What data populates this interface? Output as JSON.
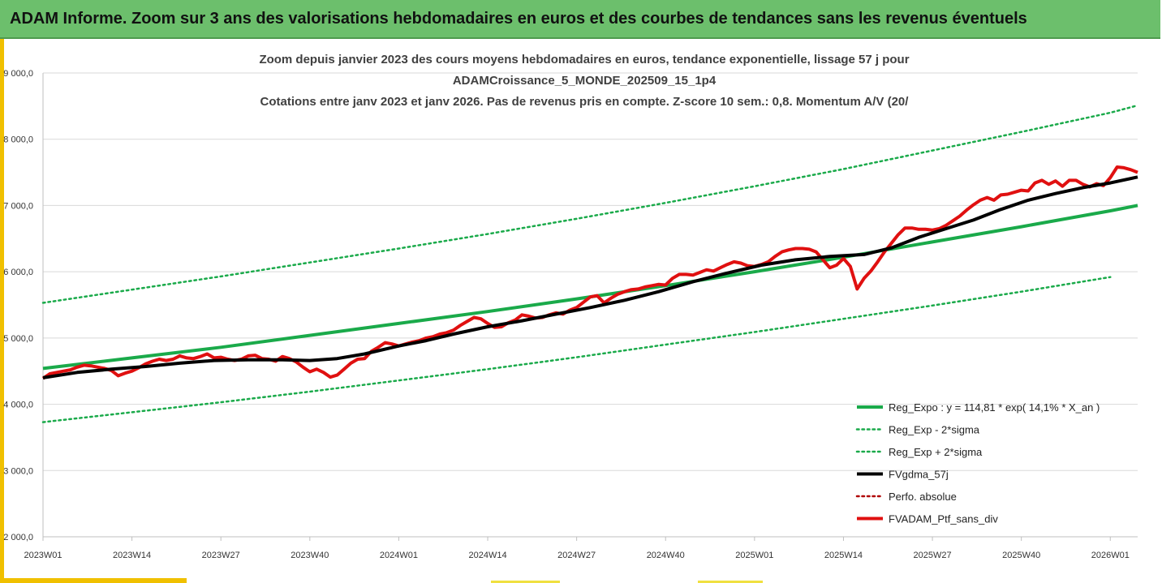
{
  "banner": {
    "title": "ADAM Informe. Zoom sur 3 ans des valorisations hebdomadaires en euros et des courbes de tendances sans les revenus éventuels"
  },
  "colors": {
    "green": "#1aaa4a",
    "black": "#000000",
    "red": "#e01010",
    "darkred": "#b00000",
    "banner": "#6cbf6c"
  },
  "chart_data": {
    "type": "line",
    "title": [
      "Zoom depuis janvier 2023 des cours moyens hebdomadaires  en euros, tendance exponentielle, lissage 57 j pour",
      "ADAMCroissance_5_MONDE_202509_15_1p4",
      "Cotations entre janv 2023 et janv 2026. Pas de revenus pris en compte. Z-score 10 sem.: 0,8. Momentum A/V (20/"
    ],
    "xlabel": "",
    "ylabel": "",
    "ylim": [
      2000,
      9000
    ],
    "y_ticks": [
      {
        "value": 2000,
        "label": "2 000,0"
      },
      {
        "value": 3000,
        "label": "3 000,0"
      },
      {
        "value": 4000,
        "label": "4 000,0"
      },
      {
        "value": 5000,
        "label": "5 000,0"
      },
      {
        "value": 6000,
        "label": "6 000,0"
      },
      {
        "value": 7000,
        "label": "7 000,0"
      },
      {
        "value": 8000,
        "label": "8 000,0"
      },
      {
        "value": 9000,
        "label": "9 000,0"
      }
    ],
    "xlim": [
      0,
      160
    ],
    "x_ticks": [
      {
        "week": 0,
        "label": "2023W01"
      },
      {
        "week": 13,
        "label": "2023W14"
      },
      {
        "week": 26,
        "label": "2023W27"
      },
      {
        "week": 39,
        "label": "2023W40"
      },
      {
        "week": 52,
        "label": "2024W01"
      },
      {
        "week": 65,
        "label": "2024W14"
      },
      {
        "week": 78,
        "label": "2024W27"
      },
      {
        "week": 91,
        "label": "2024W40"
      },
      {
        "week": 104,
        "label": "2025W01"
      },
      {
        "week": 117,
        "label": "2025W14"
      },
      {
        "week": 130,
        "label": "2025W27"
      },
      {
        "week": 143,
        "label": "2025W40"
      },
      {
        "week": 156,
        "label": "2026W01"
      }
    ],
    "grid": true,
    "legend_position": "bottom-right",
    "series": [
      {
        "name": "Reg_Expo : y = 114,81 * exp( 14,1% *  X_an )",
        "color": "#1aaa4a",
        "dash": "solid",
        "width": 4,
        "points": [
          [
            0,
            4540
          ],
          [
            13,
            4700
          ],
          [
            26,
            4860
          ],
          [
            39,
            5040
          ],
          [
            52,
            5220
          ],
          [
            65,
            5400
          ],
          [
            78,
            5590
          ],
          [
            91,
            5790
          ],
          [
            104,
            6000
          ],
          [
            117,
            6220
          ],
          [
            130,
            6450
          ],
          [
            143,
            6680
          ],
          [
            156,
            6920
          ],
          [
            160,
            7000
          ]
        ]
      },
      {
        "name": "Reg_Exp - 2*sigma",
        "color": "#1aaa4a",
        "dash": "dotted",
        "width": 2.5,
        "points": [
          [
            0,
            3730
          ],
          [
            13,
            3880
          ],
          [
            26,
            4030
          ],
          [
            39,
            4190
          ],
          [
            52,
            4360
          ],
          [
            65,
            4530
          ],
          [
            78,
            4710
          ],
          [
            91,
            4900
          ],
          [
            104,
            5090
          ],
          [
            117,
            5290
          ],
          [
            130,
            5490
          ],
          [
            143,
            5700
          ],
          [
            156,
            5920
          ],
          [
            156,
            5920
          ]
        ]
      },
      {
        "name": "Reg_Exp + 2*sigma",
        "color": "#1aaa4a",
        "dash": "dotted",
        "width": 2.5,
        "points": [
          [
            0,
            5530
          ],
          [
            13,
            5730
          ],
          [
            26,
            5930
          ],
          [
            39,
            6140
          ],
          [
            52,
            6350
          ],
          [
            65,
            6570
          ],
          [
            78,
            6800
          ],
          [
            91,
            7040
          ],
          [
            104,
            7290
          ],
          [
            117,
            7550
          ],
          [
            130,
            7830
          ],
          [
            143,
            8110
          ],
          [
            156,
            8400
          ],
          [
            160,
            8510
          ]
        ]
      },
      {
        "name": "FVgdma_57j",
        "color": "#000000",
        "dash": "solid",
        "width": 4,
        "points": [
          [
            0,
            4400
          ],
          [
            5,
            4480
          ],
          [
            10,
            4530
          ],
          [
            15,
            4570
          ],
          [
            20,
            4620
          ],
          [
            25,
            4660
          ],
          [
            30,
            4670
          ],
          [
            35,
            4670
          ],
          [
            39,
            4660
          ],
          [
            43,
            4690
          ],
          [
            47,
            4760
          ],
          [
            52,
            4880
          ],
          [
            56,
            4960
          ],
          [
            60,
            5060
          ],
          [
            65,
            5170
          ],
          [
            70,
            5260
          ],
          [
            75,
            5360
          ],
          [
            80,
            5460
          ],
          [
            85,
            5570
          ],
          [
            90,
            5700
          ],
          [
            95,
            5850
          ],
          [
            100,
            5980
          ],
          [
            105,
            6100
          ],
          [
            110,
            6180
          ],
          [
            115,
            6230
          ],
          [
            120,
            6260
          ],
          [
            124,
            6360
          ],
          [
            128,
            6520
          ],
          [
            132,
            6650
          ],
          [
            136,
            6780
          ],
          [
            140,
            6940
          ],
          [
            144,
            7080
          ],
          [
            148,
            7180
          ],
          [
            152,
            7270
          ],
          [
            156,
            7340
          ],
          [
            160,
            7430
          ]
        ]
      },
      {
        "name": "Perfo. absolue",
        "color": "#b00000",
        "dash": "dotted",
        "width": 2.5,
        "points": []
      },
      {
        "name": "FVADAM_Ptf_sans_div",
        "color": "#e01010",
        "dash": "solid",
        "width": 4,
        "points": [
          [
            0,
            4390
          ],
          [
            1,
            4460
          ],
          [
            2,
            4480
          ],
          [
            3,
            4500
          ],
          [
            4,
            4520
          ],
          [
            5,
            4560
          ],
          [
            6,
            4590
          ],
          [
            7,
            4580
          ],
          [
            8,
            4560
          ],
          [
            9,
            4540
          ],
          [
            10,
            4510
          ],
          [
            11,
            4430
          ],
          [
            12,
            4470
          ],
          [
            13,
            4500
          ],
          [
            14,
            4550
          ],
          [
            15,
            4610
          ],
          [
            16,
            4650
          ],
          [
            17,
            4680
          ],
          [
            18,
            4660
          ],
          [
            19,
            4680
          ],
          [
            20,
            4730
          ],
          [
            21,
            4700
          ],
          [
            22,
            4690
          ],
          [
            23,
            4720
          ],
          [
            24,
            4760
          ],
          [
            25,
            4700
          ],
          [
            26,
            4710
          ],
          [
            27,
            4680
          ],
          [
            28,
            4660
          ],
          [
            29,
            4680
          ],
          [
            30,
            4730
          ],
          [
            31,
            4740
          ],
          [
            32,
            4690
          ],
          [
            33,
            4680
          ],
          [
            34,
            4650
          ],
          [
            35,
            4720
          ],
          [
            36,
            4690
          ],
          [
            37,
            4640
          ],
          [
            38,
            4560
          ],
          [
            39,
            4490
          ],
          [
            40,
            4530
          ],
          [
            41,
            4480
          ],
          [
            42,
            4410
          ],
          [
            43,
            4440
          ],
          [
            44,
            4530
          ],
          [
            45,
            4620
          ],
          [
            46,
            4680
          ],
          [
            47,
            4690
          ],
          [
            48,
            4800
          ],
          [
            49,
            4860
          ],
          [
            50,
            4930
          ],
          [
            51,
            4910
          ],
          [
            52,
            4880
          ],
          [
            53,
            4910
          ],
          [
            54,
            4940
          ],
          [
            55,
            4960
          ],
          [
            56,
            5000
          ],
          [
            57,
            5020
          ],
          [
            58,
            5060
          ],
          [
            59,
            5080
          ],
          [
            60,
            5120
          ],
          [
            61,
            5190
          ],
          [
            62,
            5250
          ],
          [
            63,
            5310
          ],
          [
            64,
            5290
          ],
          [
            65,
            5220
          ],
          [
            66,
            5160
          ],
          [
            67,
            5170
          ],
          [
            68,
            5230
          ],
          [
            69,
            5270
          ],
          [
            70,
            5350
          ],
          [
            71,
            5330
          ],
          [
            72,
            5300
          ],
          [
            73,
            5310
          ],
          [
            74,
            5350
          ],
          [
            75,
            5380
          ],
          [
            76,
            5360
          ],
          [
            77,
            5420
          ],
          [
            78,
            5460
          ],
          [
            79,
            5540
          ],
          [
            80,
            5620
          ],
          [
            81,
            5640
          ],
          [
            82,
            5530
          ],
          [
            83,
            5600
          ],
          [
            84,
            5660
          ],
          [
            85,
            5700
          ],
          [
            86,
            5730
          ],
          [
            87,
            5740
          ],
          [
            88,
            5770
          ],
          [
            89,
            5790
          ],
          [
            90,
            5810
          ],
          [
            91,
            5800
          ],
          [
            92,
            5900
          ],
          [
            93,
            5960
          ],
          [
            94,
            5960
          ],
          [
            95,
            5950
          ],
          [
            96,
            5990
          ],
          [
            97,
            6030
          ],
          [
            98,
            6010
          ],
          [
            99,
            6060
          ],
          [
            100,
            6110
          ],
          [
            101,
            6150
          ],
          [
            102,
            6130
          ],
          [
            103,
            6090
          ],
          [
            104,
            6080
          ],
          [
            105,
            6110
          ],
          [
            106,
            6150
          ],
          [
            107,
            6230
          ],
          [
            108,
            6300
          ],
          [
            109,
            6330
          ],
          [
            110,
            6350
          ],
          [
            111,
            6350
          ],
          [
            112,
            6340
          ],
          [
            113,
            6300
          ],
          [
            114,
            6180
          ],
          [
            115,
            6060
          ],
          [
            116,
            6100
          ],
          [
            117,
            6200
          ],
          [
            118,
            6080
          ],
          [
            119,
            5740
          ],
          [
            120,
            5900
          ],
          [
            121,
            6010
          ],
          [
            122,
            6150
          ],
          [
            123,
            6300
          ],
          [
            124,
            6430
          ],
          [
            125,
            6560
          ],
          [
            126,
            6660
          ],
          [
            127,
            6660
          ],
          [
            128,
            6640
          ],
          [
            129,
            6640
          ],
          [
            130,
            6630
          ],
          [
            131,
            6650
          ],
          [
            132,
            6700
          ],
          [
            133,
            6770
          ],
          [
            134,
            6840
          ],
          [
            135,
            6930
          ],
          [
            136,
            7010
          ],
          [
            137,
            7080
          ],
          [
            138,
            7120
          ],
          [
            139,
            7080
          ],
          [
            140,
            7160
          ],
          [
            141,
            7170
          ],
          [
            142,
            7200
          ],
          [
            143,
            7230
          ],
          [
            144,
            7220
          ],
          [
            145,
            7340
          ],
          [
            146,
            7380
          ],
          [
            147,
            7320
          ],
          [
            148,
            7370
          ],
          [
            149,
            7290
          ],
          [
            150,
            7380
          ],
          [
            151,
            7380
          ],
          [
            152,
            7320
          ],
          [
            153,
            7280
          ],
          [
            154,
            7330
          ],
          [
            155,
            7300
          ],
          [
            156,
            7420
          ],
          [
            157,
            7580
          ],
          [
            158,
            7570
          ],
          [
            159,
            7540
          ],
          [
            160,
            7500
          ]
        ]
      }
    ]
  }
}
